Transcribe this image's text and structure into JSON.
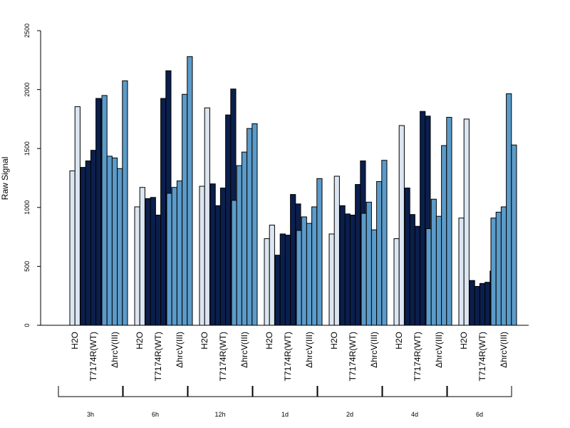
{
  "chart_data": {
    "type": "bar",
    "ylabel": "Raw Signal",
    "ylim": [
      0,
      2500
    ],
    "yticks": [
      0,
      500,
      1000,
      1500,
      2000,
      2500
    ],
    "grid": false,
    "legend": "none",
    "timepoints": [
      "3h",
      "6h",
      "12h",
      "1d",
      "2d",
      "4d",
      "6d"
    ],
    "treatments": [
      "H2O",
      "T7174R(WT)",
      "ΔhrcV(III)"
    ],
    "treatment_colors": [
      "#dce6f2",
      "#0b1f4d",
      "#5b9bc9"
    ],
    "groups": [
      {
        "time": "3h",
        "values": {
          "H2O": [
            1310,
            1855
          ],
          "T7174R(WT)": [
            1340,
            1395,
            1485,
            1925,
            1910
          ],
          "ΔhrcV(III)": [
            1950,
            1435,
            1420,
            1330,
            2075
          ]
        }
      },
      {
        "time": "6h",
        "values": {
          "H2O": [
            1005,
            1170
          ],
          "T7174R(WT)": [
            1075,
            1085,
            935,
            1925,
            2160
          ],
          "ΔhrcV(III)": [
            1120,
            1170,
            1225,
            1960,
            2280
          ]
        }
      },
      {
        "time": "12h",
        "values": {
          "H2O": [
            1180,
            1845
          ],
          "T7174R(WT)": [
            1200,
            1015,
            1165,
            1785,
            2005
          ],
          "ΔhrcV(III)": [
            1060,
            1355,
            1470,
            1670,
            1710
          ]
        }
      },
      {
        "time": "1d",
        "values": {
          "H2O": [
            735,
            850
          ],
          "T7174R(WT)": [
            595,
            775,
            765,
            1110,
            1030
          ],
          "ΔhrcV(III)": [
            805,
            920,
            865,
            1005,
            1245
          ]
        }
      },
      {
        "time": "2d",
        "values": {
          "H2O": [
            775,
            1265
          ],
          "T7174R(WT)": [
            1015,
            945,
            935,
            1195,
            1395
          ],
          "ΔhrcV(III)": [
            950,
            1045,
            810,
            1220,
            1400
          ]
        }
      },
      {
        "time": "4d",
        "values": {
          "H2O": [
            735,
            1695
          ],
          "T7174R(WT)": [
            1165,
            940,
            840,
            1815,
            1775
          ],
          "ΔhrcV(III)": [
            820,
            1070,
            925,
            1525,
            1765
          ]
        }
      },
      {
        "time": "6d",
        "values": {
          "H2O": [
            910,
            1750
          ],
          "T7174R(WT)": [
            380,
            330,
            355,
            365,
            460
          ],
          "ΔhrcV(III)": [
            910,
            960,
            1005,
            1965,
            1530
          ]
        }
      }
    ]
  }
}
